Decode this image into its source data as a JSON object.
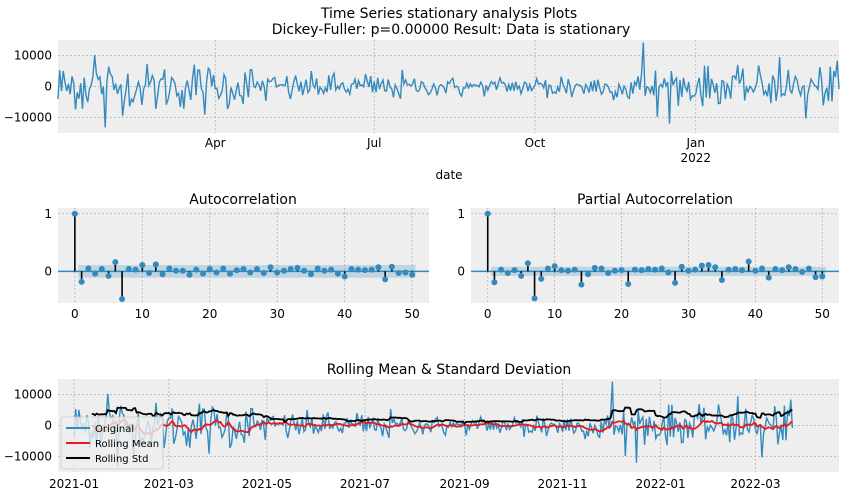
{
  "title": {
    "line1": "Time Series stationary analysis Plots",
    "line2": "Dickey-Fuller: p=0.00000 Result: Data is stationary"
  },
  "chart_data": [
    {
      "type": "line",
      "title": "",
      "xlabel": "date",
      "ylabel": "",
      "x_range": [
        "2021-01-01",
        "2022-03-24"
      ],
      "ylim": [
        -15000,
        15000
      ],
      "y_ticks": [
        10000,
        0,
        -10000
      ],
      "y_tick_labels": [
        "10000",
        "0",
        "−10000"
      ],
      "x_ticks": [
        "2021-04-01",
        "2021-07-01",
        "2021-10-01",
        "2022-01-01"
      ],
      "x_tick_labels": [
        "Apr",
        "Jul",
        "Oct",
        "Jan"
      ],
      "x_tick_sublabel": "2022",
      "grid": true,
      "color": "#348abd",
      "series_generator": "daily differenced values, approx. 448 points, mean ~0",
      "peaks": [
        {
          "x": "2021-01-22",
          "y": 10200
        },
        {
          "x": "2021-01-28",
          "y": -13200
        },
        {
          "x": "2021-12-02",
          "y": 14200
        },
        {
          "x": "2021-12-10",
          "y": -9800
        },
        {
          "x": "2022-03-05",
          "y": -10300
        },
        {
          "x": "2022-02-18",
          "y": 9500
        }
      ]
    },
    {
      "type": "stem",
      "title": "Autocorrelation",
      "x_ticks": [
        0,
        10,
        20,
        30,
        40,
        50
      ],
      "y_ticks": [
        1,
        0
      ],
      "xlim": [
        -2.5,
        52.5
      ],
      "ylim": [
        -0.55,
        1.1
      ],
      "confidence_band": 0.11,
      "lags": [
        0,
        1,
        2,
        3,
        4,
        5,
        6,
        7,
        8,
        9,
        10,
        11,
        12,
        13,
        14,
        15,
        16,
        17,
        18,
        19,
        20,
        21,
        22,
        23,
        24,
        25,
        26,
        27,
        28,
        29,
        30,
        31,
        32,
        33,
        34,
        35,
        36,
        37,
        38,
        39,
        40,
        41,
        42,
        43,
        44,
        45,
        46,
        47,
        48,
        49,
        50
      ],
      "values": [
        1.0,
        -0.18,
        0.05,
        -0.04,
        0.04,
        -0.08,
        0.16,
        -0.48,
        0.04,
        0.03,
        0.11,
        -0.03,
        0.12,
        -0.05,
        0.05,
        0.01,
        0.01,
        -0.06,
        0.03,
        -0.04,
        0.04,
        -0.02,
        0.05,
        -0.04,
        0.02,
        0.04,
        -0.02,
        0.04,
        -0.03,
        0.07,
        -0.02,
        0.01,
        0.04,
        0.06,
        0.01,
        -0.05,
        0.05,
        0.01,
        0.03,
        -0.04,
        -0.09,
        0.04,
        0.03,
        0.02,
        0.03,
        0.07,
        -0.14,
        0.08,
        -0.03,
        -0.02,
        -0.06
      ]
    },
    {
      "type": "stem",
      "title": "Partial Autocorrelation",
      "x_ticks": [
        0,
        10,
        20,
        30,
        40,
        50
      ],
      "y_ticks": [
        1,
        0
      ],
      "xlim": [
        -2.5,
        52.5
      ],
      "ylim": [
        -0.55,
        1.1
      ],
      "confidence_band": 0.08,
      "lags": [
        0,
        1,
        2,
        3,
        4,
        5,
        6,
        7,
        8,
        9,
        10,
        11,
        12,
        13,
        14,
        15,
        16,
        17,
        18,
        19,
        20,
        21,
        22,
        23,
        24,
        25,
        26,
        27,
        28,
        29,
        30,
        31,
        32,
        33,
        34,
        35,
        36,
        37,
        38,
        39,
        40,
        41,
        42,
        43,
        44,
        45,
        46,
        47,
        48,
        49,
        50
      ],
      "values": [
        1.0,
        -0.19,
        0.03,
        -0.03,
        0.02,
        -0.08,
        0.14,
        -0.47,
        -0.13,
        0.05,
        0.09,
        0.02,
        0.01,
        0.03,
        -0.23,
        -0.05,
        0.06,
        0.05,
        -0.03,
        0.01,
        0.02,
        -0.22,
        0.03,
        0.02,
        0.04,
        0.03,
        0.05,
        -0.02,
        -0.2,
        0.08,
        0.01,
        0.03,
        0.1,
        0.11,
        0.07,
        -0.15,
        0.03,
        0.04,
        0.02,
        0.17,
        0.01,
        0.05,
        -0.11,
        0.04,
        0.02,
        0.07,
        0.04,
        -0.01,
        0.05,
        -0.1,
        -0.09
      ]
    },
    {
      "type": "line",
      "title": "Rolling Mean & Standard Deviation",
      "x_range": [
        "2020-12-22",
        "2022-04-22"
      ],
      "data_x_range": [
        "2021-01-01",
        "2022-03-24"
      ],
      "ylim": [
        -15000,
        15000
      ],
      "y_ticks": [
        10000,
        0,
        -10000
      ],
      "y_tick_labels": [
        "10000",
        "0",
        "−10000"
      ],
      "x_ticks": [
        "2021-01-01",
        "2021-03-01",
        "2021-05-01",
        "2021-07-01",
        "2021-09-01",
        "2021-11-01",
        "2022-01-01",
        "2022-03-01"
      ],
      "x_tick_labels": [
        "2021-01",
        "2021-03",
        "2021-05",
        "2021-07",
        "2021-09",
        "2021-11",
        "2022-01",
        "2022-03"
      ],
      "legend_position": "lower-left",
      "series": [
        {
          "name": "Original",
          "color": "#348abd"
        },
        {
          "name": "Rolling Mean",
          "color": "#e41a1c"
        },
        {
          "name": "Rolling Std",
          "color": "#000000"
        }
      ],
      "grid": true
    }
  ]
}
